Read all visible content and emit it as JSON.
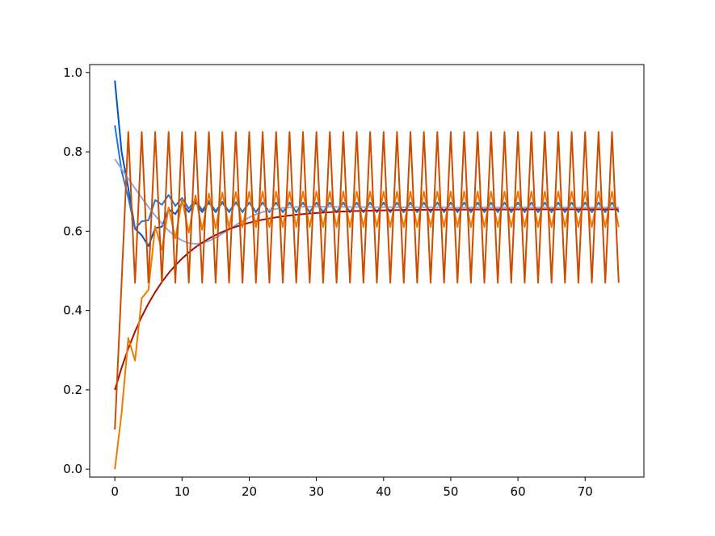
{
  "chart_data": {
    "type": "line",
    "title": "",
    "xlabel": "",
    "ylabel": "",
    "xlim": [
      -3.75,
      78.75
    ],
    "ylim": [
      -0.02,
      1.02
    ],
    "x_ticks": [
      0,
      10,
      20,
      30,
      40,
      50,
      60,
      70
    ],
    "y_ticks": [
      0.0,
      0.2,
      0.4,
      0.6,
      0.8,
      1.0
    ],
    "x_tick_labels": [
      "0",
      "10",
      "20",
      "30",
      "40",
      "50",
      "60",
      "70"
    ],
    "y_tick_labels": [
      "0.0",
      "0.2",
      "0.4",
      "0.6",
      "0.8",
      "1.0"
    ],
    "grid": false,
    "x_max": 75,
    "series": [
      {
        "color": "#0050c8",
        "start": 1.0,
        "target": 0.66,
        "decay": 0.55,
        "amp": 0.0,
        "osc_amp": 0.012,
        "osc_decay": 0.0,
        "period": 2,
        "dip": -0.12,
        "dip_center": 4,
        "dip_width": 3
      },
      {
        "color": "#1f78d6",
        "start": 0.9,
        "target": 0.66,
        "decay": 0.3,
        "amp": 0.0,
        "osc_amp": 0.012,
        "osc_decay": 0.0,
        "period": 2,
        "dip": -0.14,
        "dip_center": 3,
        "dip_width": 2.5
      },
      {
        "color": "#8fa8e0",
        "start": 0.8,
        "target": 0.66,
        "decay": 0.14,
        "amp": 0.0,
        "osc_amp": 0.0,
        "osc_decay": 0.0,
        "period": 2,
        "dip": -0.12,
        "dip_center": 11,
        "dip_width": 8
      },
      {
        "color": "#a31000",
        "start": 0.2,
        "target": 0.655,
        "decay": 0.13,
        "amp": 0.0,
        "osc_amp": 0.0,
        "osc_decay": 0.0,
        "period": 2,
        "dip": 0.0,
        "dip_center": 0,
        "dip_width": 1
      },
      {
        "color": "#f07a00",
        "start": 0.0,
        "target": 0.655,
        "decay": 0.35,
        "amp": 0.0,
        "osc_amp": 0.045,
        "osc_decay": 0.0,
        "period": 2,
        "dip": -0.12,
        "dip_center": 3.5,
        "dip_width": 1.5
      },
      {
        "color": "#cc4c00",
        "start": 0.1,
        "target": 0.66,
        "decay": 0.0,
        "amp": 0.0,
        "osc_amp": 0.19,
        "osc_decay": 0.0,
        "period": 2,
        "dip": 0.0,
        "dip_center": 0,
        "dip_width": 1
      }
    ]
  }
}
